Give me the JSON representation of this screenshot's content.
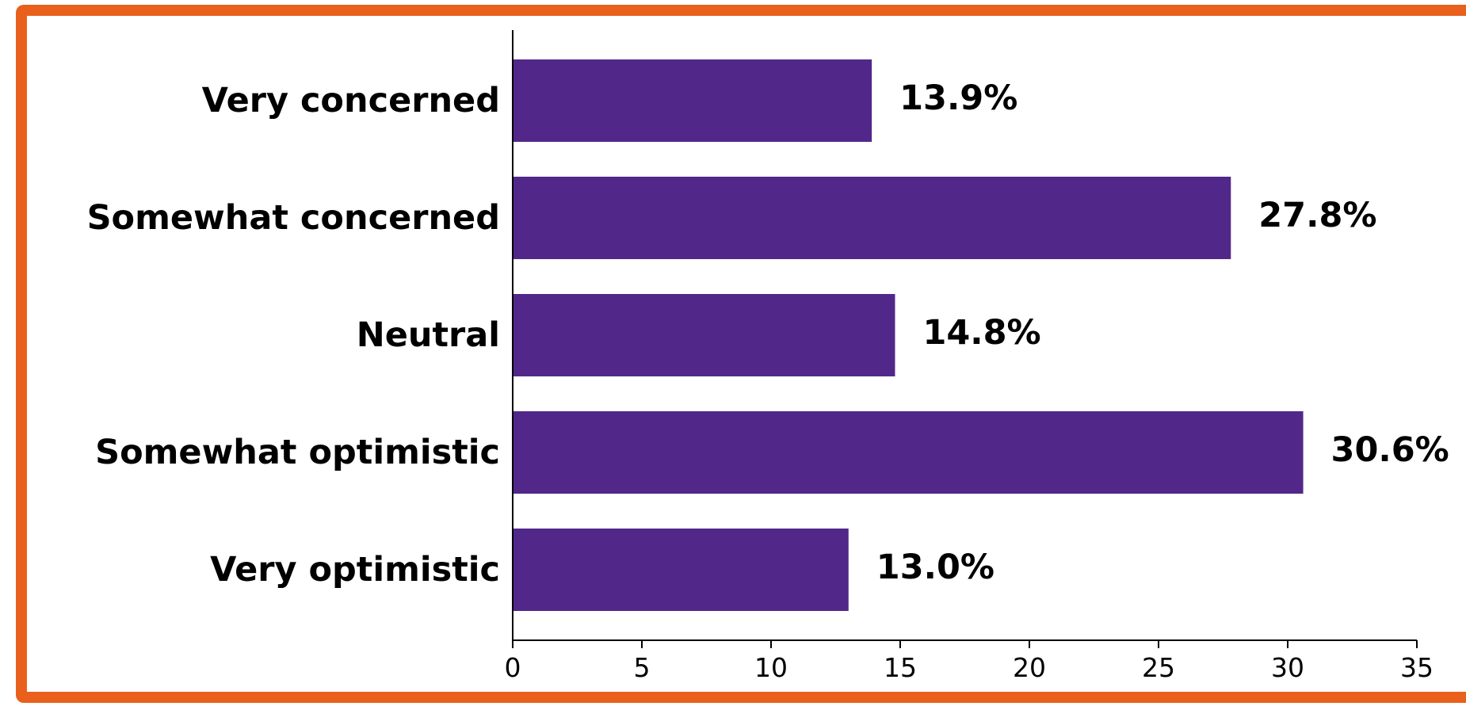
{
  "chart_data": {
    "type": "bar",
    "orientation": "horizontal",
    "categories": [
      "Very concerned",
      "Somewhat concerned",
      "Neutral",
      "Somewhat optimistic",
      "Very optimistic"
    ],
    "values": [
      13.9,
      27.8,
      14.8,
      30.6,
      13.0
    ],
    "value_labels": [
      "13.9%",
      "27.8%",
      "14.8%",
      "30.6%",
      "13.0%"
    ],
    "title": "",
    "xlabel": "",
    "ylabel": "",
    "xlim": [
      0,
      35
    ],
    "x_ticks": [
      0,
      5,
      10,
      15,
      20,
      25,
      30,
      35
    ],
    "x_tick_labels": [
      "0",
      "5",
      "10",
      "15",
      "20",
      "25",
      "30",
      "35"
    ],
    "grid": false,
    "legend": "none",
    "bar_color": "#51288a",
    "frame_color": "#e8601c"
  }
}
